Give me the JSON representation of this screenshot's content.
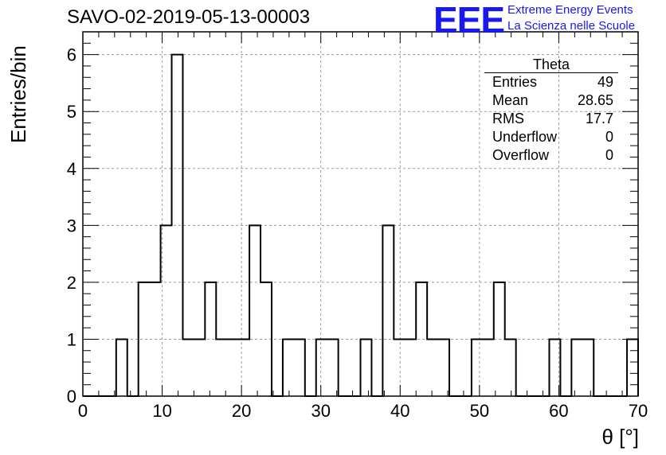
{
  "chart_data": {
    "type": "histogram",
    "title": "SAVO-02-2019-05-13-00003",
    "xlabel": "θ [°]",
    "ylabel": "Entries/bin",
    "xlim": [
      0,
      70
    ],
    "ylim": [
      0,
      6.4
    ],
    "x_ticks": [
      0,
      10,
      20,
      30,
      40,
      50,
      60,
      70
    ],
    "y_ticks": [
      0,
      1,
      2,
      3,
      4,
      5,
      6
    ],
    "grid": true,
    "bin_width": 1.4,
    "bins": [
      {
        "x0": 4.2,
        "x1": 5.6,
        "count": 1
      },
      {
        "x0": 7.0,
        "x1": 8.4,
        "count": 2
      },
      {
        "x0": 8.4,
        "x1": 9.8,
        "count": 2
      },
      {
        "x0": 9.8,
        "x1": 11.2,
        "count": 3
      },
      {
        "x0": 11.2,
        "x1": 12.6,
        "count": 6
      },
      {
        "x0": 12.6,
        "x1": 14.0,
        "count": 1
      },
      {
        "x0": 14.0,
        "x1": 15.4,
        "count": 1
      },
      {
        "x0": 15.4,
        "x1": 16.8,
        "count": 2
      },
      {
        "x0": 16.8,
        "x1": 18.2,
        "count": 1
      },
      {
        "x0": 18.2,
        "x1": 19.6,
        "count": 1
      },
      {
        "x0": 19.6,
        "x1": 21.0,
        "count": 1
      },
      {
        "x0": 21.0,
        "x1": 22.4,
        "count": 3
      },
      {
        "x0": 22.4,
        "x1": 23.8,
        "count": 2
      },
      {
        "x0": 25.2,
        "x1": 26.6,
        "count": 1
      },
      {
        "x0": 26.6,
        "x1": 28.0,
        "count": 1
      },
      {
        "x0": 29.4,
        "x1": 30.8,
        "count": 1
      },
      {
        "x0": 30.8,
        "x1": 32.2,
        "count": 1
      },
      {
        "x0": 35.0,
        "x1": 36.4,
        "count": 1
      },
      {
        "x0": 37.8,
        "x1": 39.2,
        "count": 3
      },
      {
        "x0": 39.2,
        "x1": 40.6,
        "count": 1
      },
      {
        "x0": 40.6,
        "x1": 42.0,
        "count": 1
      },
      {
        "x0": 42.0,
        "x1": 43.4,
        "count": 2
      },
      {
        "x0": 43.4,
        "x1": 44.8,
        "count": 1
      },
      {
        "x0": 44.8,
        "x1": 46.2,
        "count": 1
      },
      {
        "x0": 49.0,
        "x1": 50.4,
        "count": 1
      },
      {
        "x0": 50.4,
        "x1": 51.8,
        "count": 1
      },
      {
        "x0": 51.8,
        "x1": 53.2,
        "count": 2
      },
      {
        "x0": 53.2,
        "x1": 54.6,
        "count": 1
      },
      {
        "x0": 58.8,
        "x1": 60.2,
        "count": 1
      },
      {
        "x0": 61.6,
        "x1": 63.0,
        "count": 1
      },
      {
        "x0": 63.0,
        "x1": 64.4,
        "count": 1
      },
      {
        "x0": 68.6,
        "x1": 70.0,
        "count": 1
      }
    ],
    "line_color": "#000000",
    "stats_box": {
      "title": "Theta",
      "rows": [
        {
          "label": "Entries",
          "value": "49"
        },
        {
          "label": "Mean",
          "value": "28.65"
        },
        {
          "label": "RMS",
          "value": "17.7"
        },
        {
          "label": "Underflow",
          "value": "0"
        },
        {
          "label": "Overflow",
          "value": "0"
        }
      ]
    }
  },
  "logo": {
    "mark": "EEE",
    "line1": "Extreme Energy Events",
    "line2": "La Scienza nelle Scuole",
    "color": "#1818f0"
  }
}
